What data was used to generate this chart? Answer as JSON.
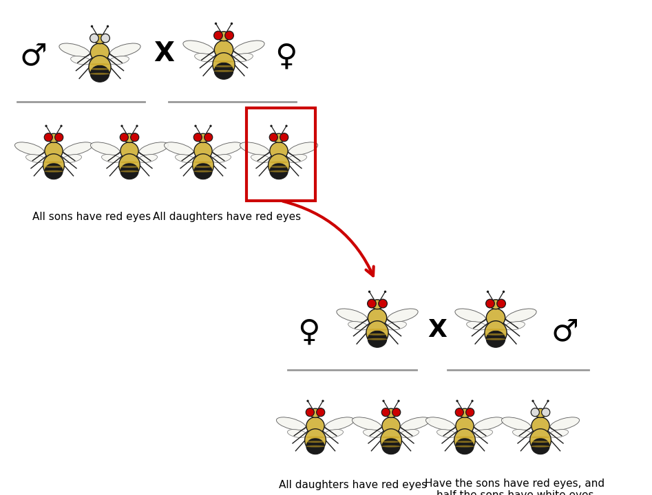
{
  "bg_color": "#ffffff",
  "text_color": "#000000",
  "red_eye_color": "#cc0000",
  "white_eye_color": "#ffffff",
  "fly_body_color": "#d4b84a",
  "fly_abdomen_color": "#1a1a1a",
  "fly_stripe_color": "#c8a020",
  "fly_black": "#1a1a1a",
  "male_symbol": "♂",
  "female_symbol": "♀",
  "cross_symbol": "X",
  "label_sons": "All sons have red eyes",
  "label_daughters_top": "All daughters have red eyes",
  "label_daughters_bottom": "All daughters have red eyes",
  "label_sons_bottom": "Have the sons have red eyes, and\nhalf the sons have white eyes",
  "arrow_color": "#cc0000",
  "box_color": "#cc0000",
  "line_color": "#999999",
  "fontsize_label": 11,
  "fontsize_symbol": 30
}
